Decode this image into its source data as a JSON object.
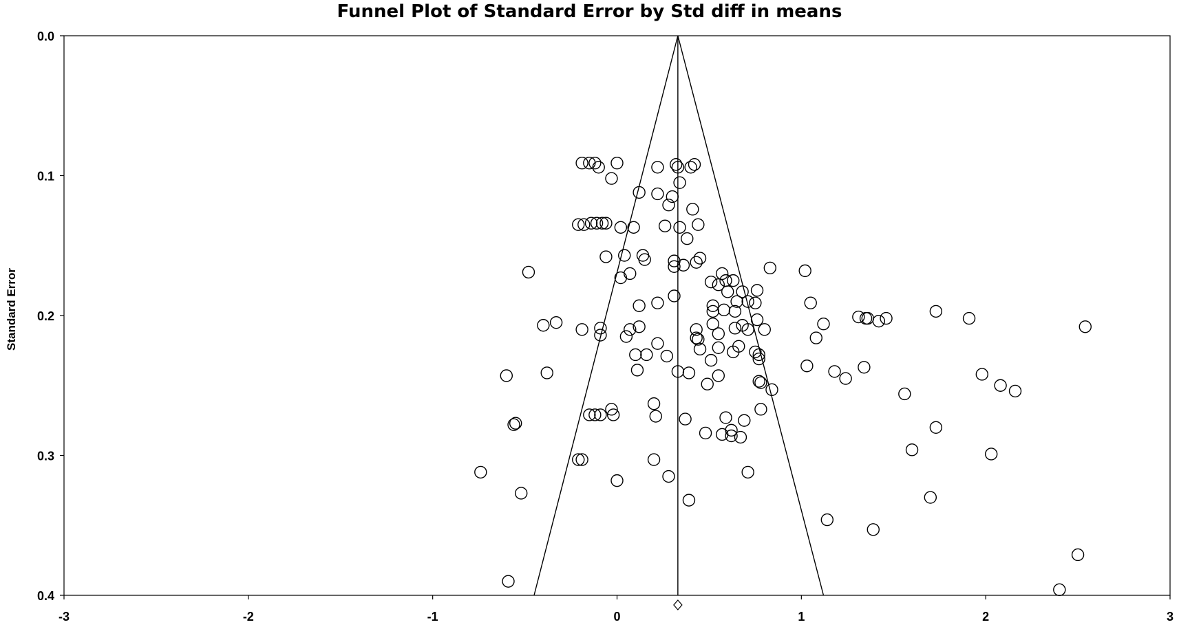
{
  "chart_data": {
    "type": "scatter",
    "title": "Funnel Plot of Standard Error by Std diff in means",
    "xlabel": "",
    "ylabel": "Standard Error",
    "xlim": [
      -3,
      3
    ],
    "ylim": [
      0.0,
      0.4
    ],
    "y_inverted": true,
    "x_ticks": [
      "-3",
      "-2",
      "-1",
      "0",
      "1",
      "2",
      "3"
    ],
    "y_ticks": [
      "0.0",
      "0.1",
      "0.2",
      "0.3",
      "0.4"
    ],
    "grid": false,
    "legend": "none",
    "marker": "open-circle",
    "summary_effect": 0.33,
    "summary_marker": "open-diamond",
    "funnel_limits": {
      "apex": [
        0.33,
        0.0
      ],
      "left_at_bottom": -0.45,
      "right_at_bottom": 1.12
    },
    "points": [
      [
        -0.19,
        0.091
      ],
      [
        -0.15,
        0.091
      ],
      [
        -0.12,
        0.091
      ],
      [
        -0.1,
        0.094
      ],
      [
        0.0,
        0.091
      ],
      [
        -0.03,
        0.102
      ],
      [
        0.22,
        0.094
      ],
      [
        0.32,
        0.092
      ],
      [
        0.33,
        0.094
      ],
      [
        0.4,
        0.094
      ],
      [
        0.42,
        0.092
      ],
      [
        0.34,
        0.105
      ],
      [
        0.12,
        0.112
      ],
      [
        0.22,
        0.113
      ],
      [
        0.3,
        0.115
      ],
      [
        0.28,
        0.121
      ],
      [
        0.41,
        0.124
      ],
      [
        -0.21,
        0.135
      ],
      [
        -0.18,
        0.135
      ],
      [
        -0.14,
        0.134
      ],
      [
        -0.11,
        0.134
      ],
      [
        -0.08,
        0.134
      ],
      [
        -0.06,
        0.134
      ],
      [
        0.02,
        0.137
      ],
      [
        0.09,
        0.137
      ],
      [
        0.26,
        0.136
      ],
      [
        0.34,
        0.137
      ],
      [
        0.44,
        0.135
      ],
      [
        0.38,
        0.145
      ],
      [
        -0.06,
        0.158
      ],
      [
        0.04,
        0.157
      ],
      [
        0.14,
        0.157
      ],
      [
        0.15,
        0.16
      ],
      [
        0.31,
        0.161
      ],
      [
        0.31,
        0.165
      ],
      [
        0.36,
        0.164
      ],
      [
        0.43,
        0.162
      ],
      [
        0.45,
        0.159
      ],
      [
        -0.48,
        0.169
      ],
      [
        0.07,
        0.17
      ],
      [
        0.02,
        0.173
      ],
      [
        0.57,
        0.17
      ],
      [
        0.51,
        0.176
      ],
      [
        0.55,
        0.178
      ],
      [
        0.59,
        0.175
      ],
      [
        0.63,
        0.175
      ],
      [
        0.6,
        0.183
      ],
      [
        0.68,
        0.183
      ],
      [
        0.76,
        0.182
      ],
      [
        0.83,
        0.166
      ],
      [
        1.02,
        0.168
      ],
      [
        0.31,
        0.186
      ],
      [
        0.12,
        0.193
      ],
      [
        0.22,
        0.191
      ],
      [
        0.52,
        0.193
      ],
      [
        0.52,
        0.197
      ],
      [
        0.58,
        0.196
      ],
      [
        0.65,
        0.19
      ],
      [
        0.71,
        0.19
      ],
      [
        0.75,
        0.191
      ],
      [
        0.64,
        0.197
      ],
      [
        1.05,
        0.191
      ],
      [
        1.31,
        0.201
      ],
      [
        1.35,
        0.202
      ],
      [
        1.36,
        0.202
      ],
      [
        1.42,
        0.204
      ],
      [
        1.46,
        0.202
      ],
      [
        1.73,
        0.197
      ],
      [
        1.91,
        0.202
      ],
      [
        2.54,
        0.208
      ],
      [
        -0.4,
        0.207
      ],
      [
        -0.33,
        0.205
      ],
      [
        -0.19,
        0.21
      ],
      [
        -0.09,
        0.209
      ],
      [
        -0.09,
        0.214
      ],
      [
        0.07,
        0.21
      ],
      [
        0.12,
        0.208
      ],
      [
        0.05,
        0.215
      ],
      [
        0.52,
        0.206
      ],
      [
        0.43,
        0.21
      ],
      [
        0.64,
        0.209
      ],
      [
        0.68,
        0.207
      ],
      [
        0.71,
        0.21
      ],
      [
        0.76,
        0.203
      ],
      [
        0.8,
        0.21
      ],
      [
        1.12,
        0.206
      ],
      [
        1.08,
        0.216
      ],
      [
        0.43,
        0.216
      ],
      [
        0.44,
        0.217
      ],
      [
        0.55,
        0.213
      ],
      [
        0.22,
        0.22
      ],
      [
        0.1,
        0.228
      ],
      [
        0.16,
        0.228
      ],
      [
        0.27,
        0.229
      ],
      [
        0.45,
        0.224
      ],
      [
        0.55,
        0.223
      ],
      [
        0.51,
        0.232
      ],
      [
        0.63,
        0.226
      ],
      [
        0.66,
        0.222
      ],
      [
        0.75,
        0.226
      ],
      [
        0.77,
        0.228
      ],
      [
        0.77,
        0.231
      ],
      [
        -0.6,
        0.243
      ],
      [
        -0.38,
        0.241
      ],
      [
        0.11,
        0.239
      ],
      [
        0.33,
        0.24
      ],
      [
        0.39,
        0.241
      ],
      [
        0.55,
        0.243
      ],
      [
        0.49,
        0.249
      ],
      [
        0.77,
        0.247
      ],
      [
        0.78,
        0.248
      ],
      [
        0.84,
        0.253
      ],
      [
        1.03,
        0.236
      ],
      [
        1.18,
        0.24
      ],
      [
        1.24,
        0.245
      ],
      [
        1.34,
        0.237
      ],
      [
        1.56,
        0.256
      ],
      [
        1.98,
        0.242
      ],
      [
        2.08,
        0.25
      ],
      [
        2.16,
        0.254
      ],
      [
        -0.55,
        0.277
      ],
      [
        -0.56,
        0.278
      ],
      [
        -0.15,
        0.271
      ],
      [
        -0.12,
        0.271
      ],
      [
        -0.09,
        0.271
      ],
      [
        -0.03,
        0.267
      ],
      [
        -0.02,
        0.271
      ],
      [
        0.2,
        0.263
      ],
      [
        0.21,
        0.272
      ],
      [
        0.37,
        0.274
      ],
      [
        0.48,
        0.284
      ],
      [
        0.57,
        0.285
      ],
      [
        0.59,
        0.273
      ],
      [
        0.62,
        0.282
      ],
      [
        0.62,
        0.286
      ],
      [
        0.67,
        0.287
      ],
      [
        0.69,
        0.275
      ],
      [
        0.78,
        0.267
      ],
      [
        1.73,
        0.28
      ],
      [
        -0.74,
        0.312
      ],
      [
        -0.21,
        0.303
      ],
      [
        -0.19,
        0.303
      ],
      [
        0.0,
        0.318
      ],
      [
        0.2,
        0.303
      ],
      [
        0.28,
        0.315
      ],
      [
        0.71,
        0.312
      ],
      [
        1.6,
        0.296
      ],
      [
        2.03,
        0.299
      ],
      [
        -0.52,
        0.327
      ],
      [
        0.39,
        0.332
      ],
      [
        1.7,
        0.33
      ],
      [
        1.14,
        0.346
      ],
      [
        1.39,
        0.353
      ],
      [
        2.5,
        0.371
      ],
      [
        -0.59,
        0.39
      ],
      [
        2.4,
        0.396
      ]
    ]
  }
}
